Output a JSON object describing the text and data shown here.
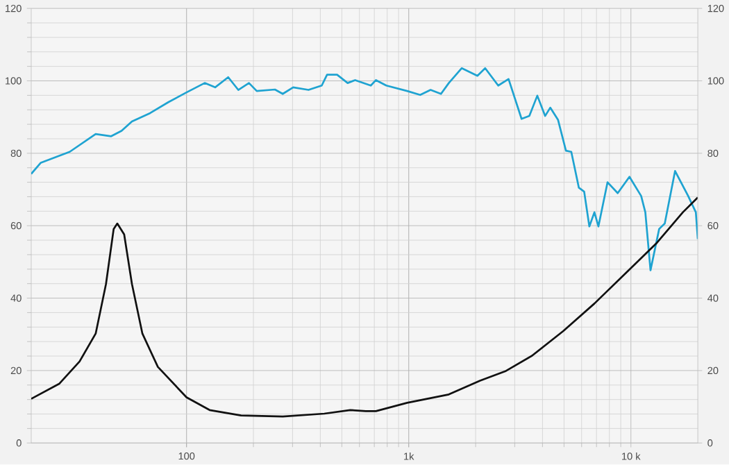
{
  "chart_data": {
    "type": "line",
    "log": "x",
    "grid": true,
    "marker": "none",
    "line_style": "solid",
    "xlim": [
      20,
      20000
    ],
    "xticks": [
      100,
      {
        "value": 1000,
        "label": "1k"
      },
      {
        "value": 10000,
        "label": "10 k"
      }
    ],
    "ylim": [
      0,
      120
    ],
    "yticks": [
      0,
      20,
      40,
      60,
      80,
      100,
      120
    ],
    "y2lim": [
      0,
      120
    ],
    "y2ticks": [
      0,
      20,
      40,
      60,
      80,
      100,
      120
    ],
    "series": [
      {
        "color": "#1fa3d1",
        "x": [
          20,
          22.1,
          29.8,
          39,
          45.8,
          51,
          56.8,
          68.6,
          82.8,
          100,
          120.7,
          134.5,
          154,
          171,
          191,
          207,
          250,
          271,
          302,
          354,
          406,
          429,
          476,
          531,
          574,
          675,
          712,
          793,
          984,
          1126,
          1254,
          1397,
          1515,
          1733,
          2038,
          2208,
          2528,
          2814,
          3220,
          3490,
          3790,
          4110,
          4335,
          4700,
          5100,
          5390,
          5830,
          6160,
          6500,
          6850,
          7140,
          7850,
          8720,
          9850,
          11120,
          11610,
          12250,
          13400,
          14200,
          15800,
          18100,
          19600,
          20000
        ],
        "values": [
          74.3,
          77.4,
          80.4,
          85.3,
          84.7,
          86.2,
          88.8,
          91.1,
          94.1,
          96.8,
          99.4,
          98.2,
          101.0,
          97.5,
          99.4,
          97.2,
          97.6,
          96.4,
          98.2,
          97.5,
          98.7,
          101.7,
          101.7,
          99.4,
          100.2,
          98.7,
          100.2,
          98.7,
          97.2,
          96.1,
          97.5,
          96.4,
          99.4,
          103.5,
          101.4,
          103.5,
          98.7,
          100.5,
          89.5,
          90.3,
          95.9,
          90.3,
          92.6,
          89.2,
          80.7,
          80.4,
          70.5,
          69.4,
          59.8,
          63.7,
          59.8,
          72.0,
          69.0,
          73.5,
          68.2,
          63.7,
          47.7,
          59.1,
          60.6,
          75.1,
          68.2,
          63.7,
          56.3
        ]
      },
      {
        "color": "#111111",
        "x": [
          20,
          26.8,
          33,
          39,
          43.4,
          47,
          48.8,
          52.4,
          56.8,
          63.3,
          74.3,
          100,
          127,
          176,
          271,
          417,
          545,
          641,
          712,
          984,
          1515,
          2094,
          2740,
          3590,
          4960,
          6850,
          9480,
          13100,
          17130,
          20000
        ],
        "values": [
          12.2,
          16.4,
          22.5,
          30.2,
          43.9,
          59.1,
          60.6,
          57.6,
          43.9,
          30.2,
          21.0,
          12.6,
          9.1,
          7.6,
          7.3,
          8.1,
          9.1,
          8.8,
          8.8,
          11.1,
          13.4,
          17.2,
          19.9,
          24.1,
          30.9,
          38.5,
          46.9,
          55.3,
          63.7,
          67.8
        ]
      }
    ]
  }
}
